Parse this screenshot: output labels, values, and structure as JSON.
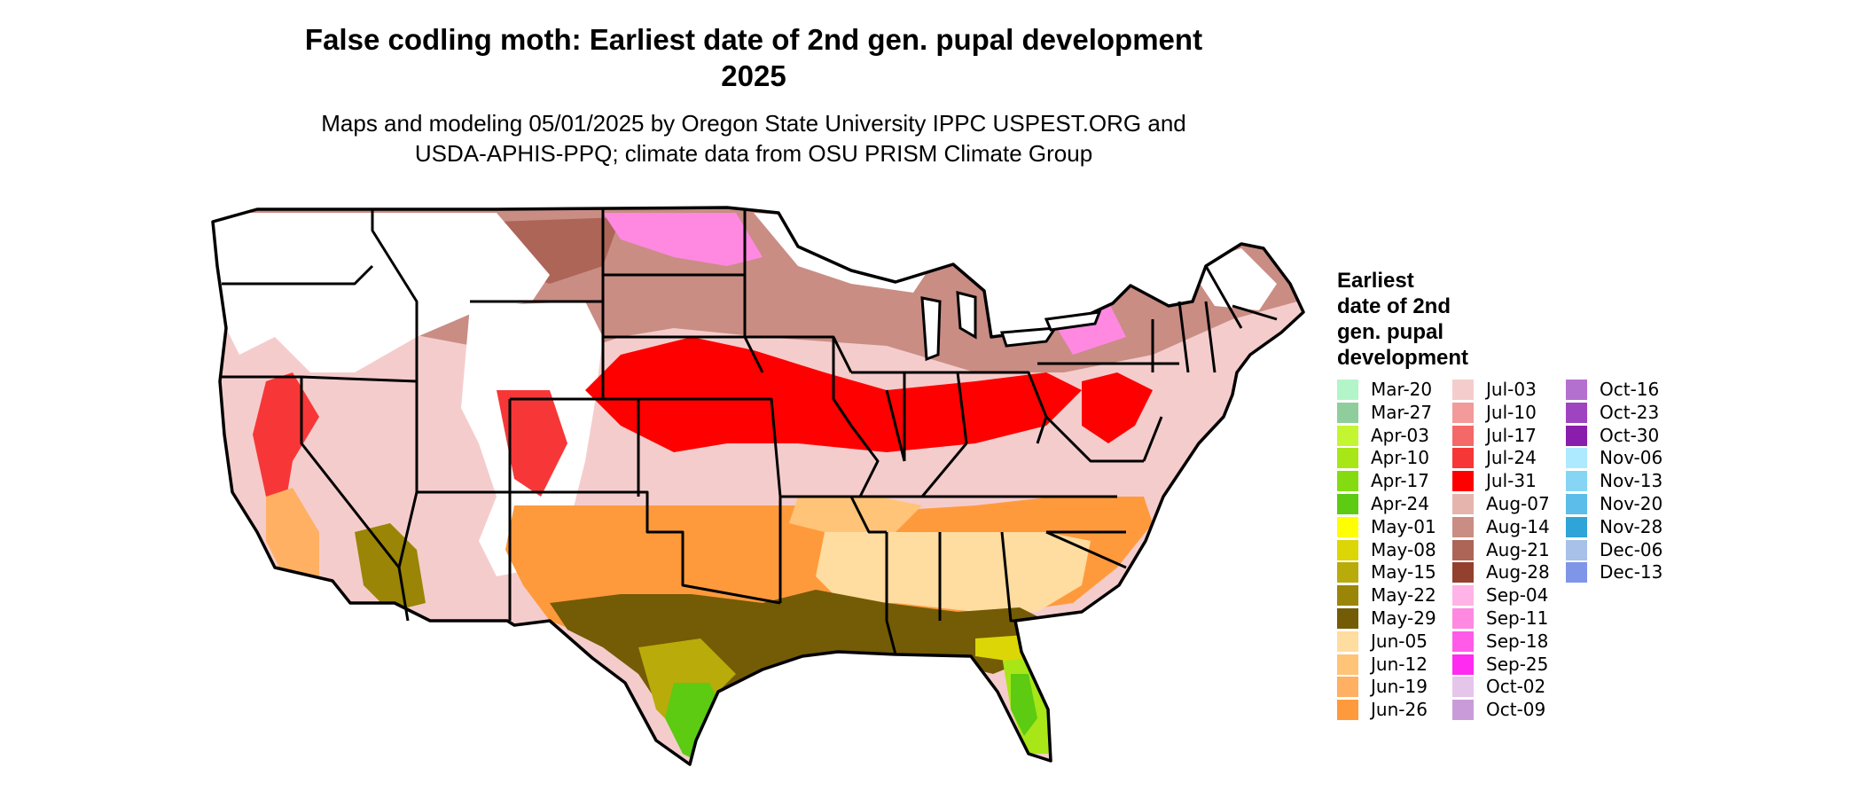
{
  "title_line1": "False codling moth: Earliest date of 2nd gen. pupal development",
  "title_line2": "2025",
  "subtitle_line1": "Maps and modeling 05/01/2025 by Oregon State University IPPC USPEST.ORG and",
  "subtitle_line2": "USDA-APHIS-PPQ; climate data from OSU PRISM Climate Group",
  "legend_title": [
    "Earliest",
    "date of 2nd",
    "gen. pupal",
    "development"
  ],
  "legend": [
    {
      "label": "Mar-20",
      "color": "#b3f5c8"
    },
    {
      "label": "Mar-27",
      "color": "#8fce9c"
    },
    {
      "label": "Apr-03",
      "color": "#c4f531"
    },
    {
      "label": "Apr-10",
      "color": "#a8e617"
    },
    {
      "label": "Apr-17",
      "color": "#84dc10"
    },
    {
      "label": "Apr-24",
      "color": "#5ccb12"
    },
    {
      "label": "May-01",
      "color": "#ffff00"
    },
    {
      "label": "May-08",
      "color": "#dcd606"
    },
    {
      "label": "May-15",
      "color": "#b9ab09"
    },
    {
      "label": "May-22",
      "color": "#9a8506"
    },
    {
      "label": "May-29",
      "color": "#745b05"
    },
    {
      "label": "Jun-05",
      "color": "#ffdca0"
    },
    {
      "label": "Jun-12",
      "color": "#ffc477"
    },
    {
      "label": "Jun-19",
      "color": "#ffb063"
    },
    {
      "label": "Jun-26",
      "color": "#ff9a3c"
    },
    {
      "label": "Jul-03",
      "color": "#f5cccc"
    },
    {
      "label": "Jul-10",
      "color": "#f39a9a"
    },
    {
      "label": "Jul-17",
      "color": "#f56868"
    },
    {
      "label": "Jul-24",
      "color": "#f73737"
    },
    {
      "label": "Jul-31",
      "color": "#ff0000"
    },
    {
      "label": "Aug-07",
      "color": "#e5b5ad"
    },
    {
      "label": "Aug-14",
      "color": "#c98d84"
    },
    {
      "label": "Aug-21",
      "color": "#ad6558"
    },
    {
      "label": "Aug-28",
      "color": "#93402f"
    },
    {
      "label": "Sep-04",
      "color": "#ffb3e6"
    },
    {
      "label": "Sep-11",
      "color": "#ff88e1"
    },
    {
      "label": "Sep-18",
      "color": "#ff5be8"
    },
    {
      "label": "Sep-25",
      "color": "#ff2bf1"
    },
    {
      "label": "Oct-02",
      "color": "#e5c5ea"
    },
    {
      "label": "Oct-09",
      "color": "#c99cd9"
    },
    {
      "label": "Oct-16",
      "color": "#b470cf"
    },
    {
      "label": "Oct-23",
      "color": "#9f44c0"
    },
    {
      "label": "Oct-30",
      "color": "#8a1dac"
    },
    {
      "label": "Nov-06",
      "color": "#aeeaff"
    },
    {
      "label": "Nov-13",
      "color": "#86d5f4"
    },
    {
      "label": "Nov-20",
      "color": "#5cbdeb"
    },
    {
      "label": "Nov-28",
      "color": "#2fa4d9"
    },
    {
      "label": "Dec-06",
      "color": "#a7c1e8"
    },
    {
      "label": "Dec-13",
      "color": "#7f95e8"
    }
  ]
}
